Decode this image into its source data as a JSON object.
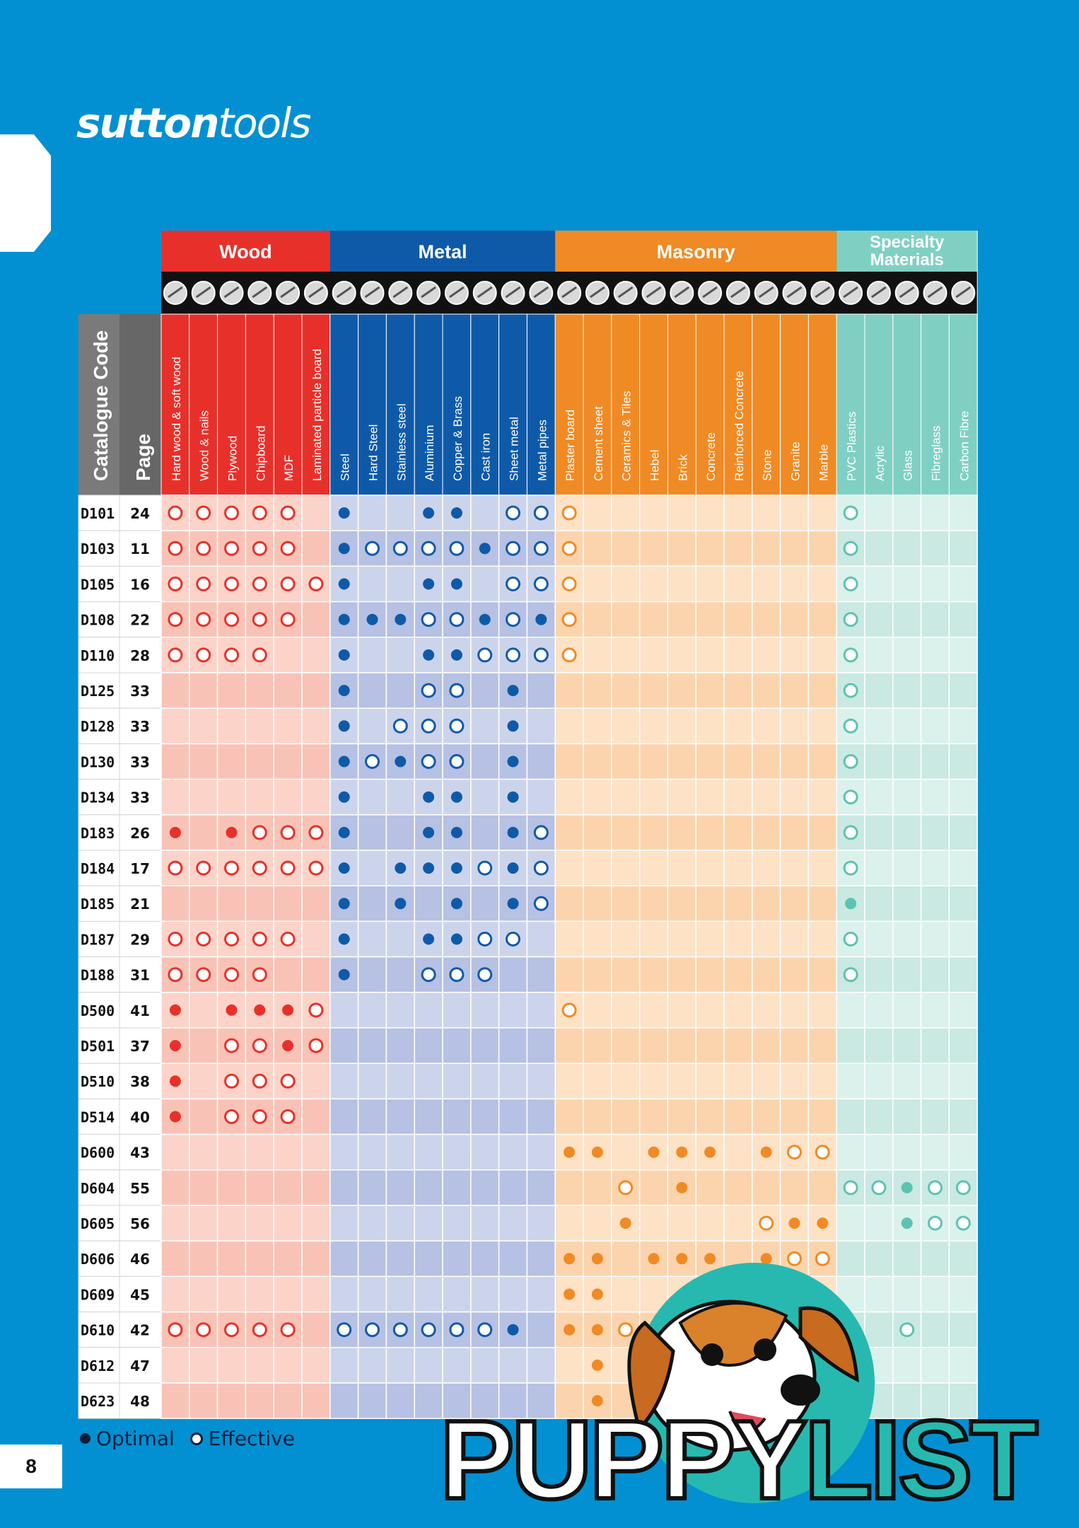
{
  "brand": {
    "logo_bold": "sutton",
    "logo_light": "tools"
  },
  "page_number": "8",
  "legend": {
    "optimal": "Optimal",
    "effective": "Effective"
  },
  "watermark": {
    "word1": "PUPPY",
    "word2": "LIST"
  },
  "colors": {
    "page_bg": "#0290d2",
    "wood": "#e8302b",
    "metal": "#0f5aa8",
    "masonry": "#f08a24",
    "specialty": "#7fd0c3"
  },
  "groups": [
    {
      "name": "Wood",
      "color": "#e8302b",
      "dot": "#e8302b",
      "light": "#fbd3c9",
      "light2": "#f8c3b6",
      "count": 6
    },
    {
      "name": "Metal",
      "color": "#0f5aa8",
      "dot": "#0f5aa8",
      "light": "#ccd4ec",
      "light2": "#b6c1e3",
      "count": 8
    },
    {
      "name": "Masonry",
      "color": "#f08a24",
      "dot": "#f08a24",
      "light": "#fde2c6",
      "light2": "#fbd4ad",
      "count": 10
    },
    {
      "name": "Specialty\nMaterials",
      "color": "#7fd0c3",
      "dot": "#5cc3b1",
      "light": "#dbf1ec",
      "light2": "#c9e9e2",
      "count": 5
    }
  ],
  "header_catalogue": "Catalogue Code",
  "header_page": "Page",
  "columns": [
    "Hard wood & soft wood",
    "Wood & nails",
    "Plywood",
    "Chipboard",
    "MDF",
    "Laminated particle board",
    "Steel",
    "Hard Steel",
    "Stainless steel",
    "Aluminium",
    "Copper & Brass",
    "Cast iron",
    "Sheet metal",
    "Metal pipes",
    "Plaster board",
    "Cement sheet",
    "Ceramics & Tiles",
    "Hebel",
    "Brick",
    "Concrete",
    "Reinforced Concrete",
    "Stone",
    "Granite",
    "Marble",
    "PVC Plastics",
    "Acrylic",
    "Glass",
    "Fibreglass",
    "Carbon Fibre"
  ],
  "chart_data": {
    "type": "table",
    "legend": {
      "O": "Optimal",
      "E": "Effective"
    },
    "rows": [
      {
        "code": "D101",
        "page": "24",
        "marks": "EEEEE.O..OO.EEE.........E...."
      },
      {
        "code": "D103",
        "page": "11",
        "marks": "EEEEE.OEEEEOEEE.........E...."
      },
      {
        "code": "D105",
        "page": "16",
        "marks": "EEEEEEO..OO.EEE.........E...."
      },
      {
        "code": "D108",
        "page": "22",
        "marks": "EEEEE.OOOEEOEOE.........E...."
      },
      {
        "code": "D110",
        "page": "28",
        "marks": "EEEE..O..OOEEEE.........E...."
      },
      {
        "code": "D125",
        "page": "33",
        "marks": "......O..EE.O...........E...."
      },
      {
        "code": "D128",
        "page": "33",
        "marks": "......O.EEE.O...........E...."
      },
      {
        "code": "D130",
        "page": "33",
        "marks": "......OEOEE.O...........E...."
      },
      {
        "code": "D134",
        "page": "33",
        "marks": "......O..OO.O...........E...."
      },
      {
        "code": "D183",
        "page": "26",
        "marks": "O.OEEEO..OO.OE..........E...."
      },
      {
        "code": "D184",
        "page": "17",
        "marks": "EEEEEEO.OOOEOE..........E...."
      },
      {
        "code": "D185",
        "page": "21",
        "marks": "......O.O.O.OE..........O...."
      },
      {
        "code": "D187",
        "page": "29",
        "marks": "EEEEE.O..OOEE...........E...."
      },
      {
        "code": "D188",
        "page": "31",
        "marks": "EEEE..O..EEE............E...."
      },
      {
        "code": "D500",
        "page": "41",
        "marks": "O.OOOE........E.............."
      },
      {
        "code": "D501",
        "page": "37",
        "marks": "O.EEOE......................."
      },
      {
        "code": "D510",
        "page": "38",
        "marks": "O.EEE........................"
      },
      {
        "code": "D514",
        "page": "40",
        "marks": "O.EEE........................"
      },
      {
        "code": "D600",
        "page": "43",
        "marks": "..............OO.OOO.OEE....."
      },
      {
        "code": "D604",
        "page": "55",
        "marks": "................E.O.....EEOEE"
      },
      {
        "code": "D605",
        "page": "56",
        "marks": "................O....EOO..OEE"
      },
      {
        "code": "D606",
        "page": "46",
        "marks": "..............OO.OOO.OEE....."
      },
      {
        "code": "D609",
        "page": "45",
        "marks": "..............OO.......E....."
      },
      {
        "code": "D610",
        "page": "42",
        "marks": "EEEEE.EEEEEEO.OOE.........E.."
      },
      {
        "code": "D612",
        "page": "47",
        "marks": "...............O............."
      },
      {
        "code": "D623",
        "page": "48",
        "marks": "...............O............."
      }
    ]
  }
}
